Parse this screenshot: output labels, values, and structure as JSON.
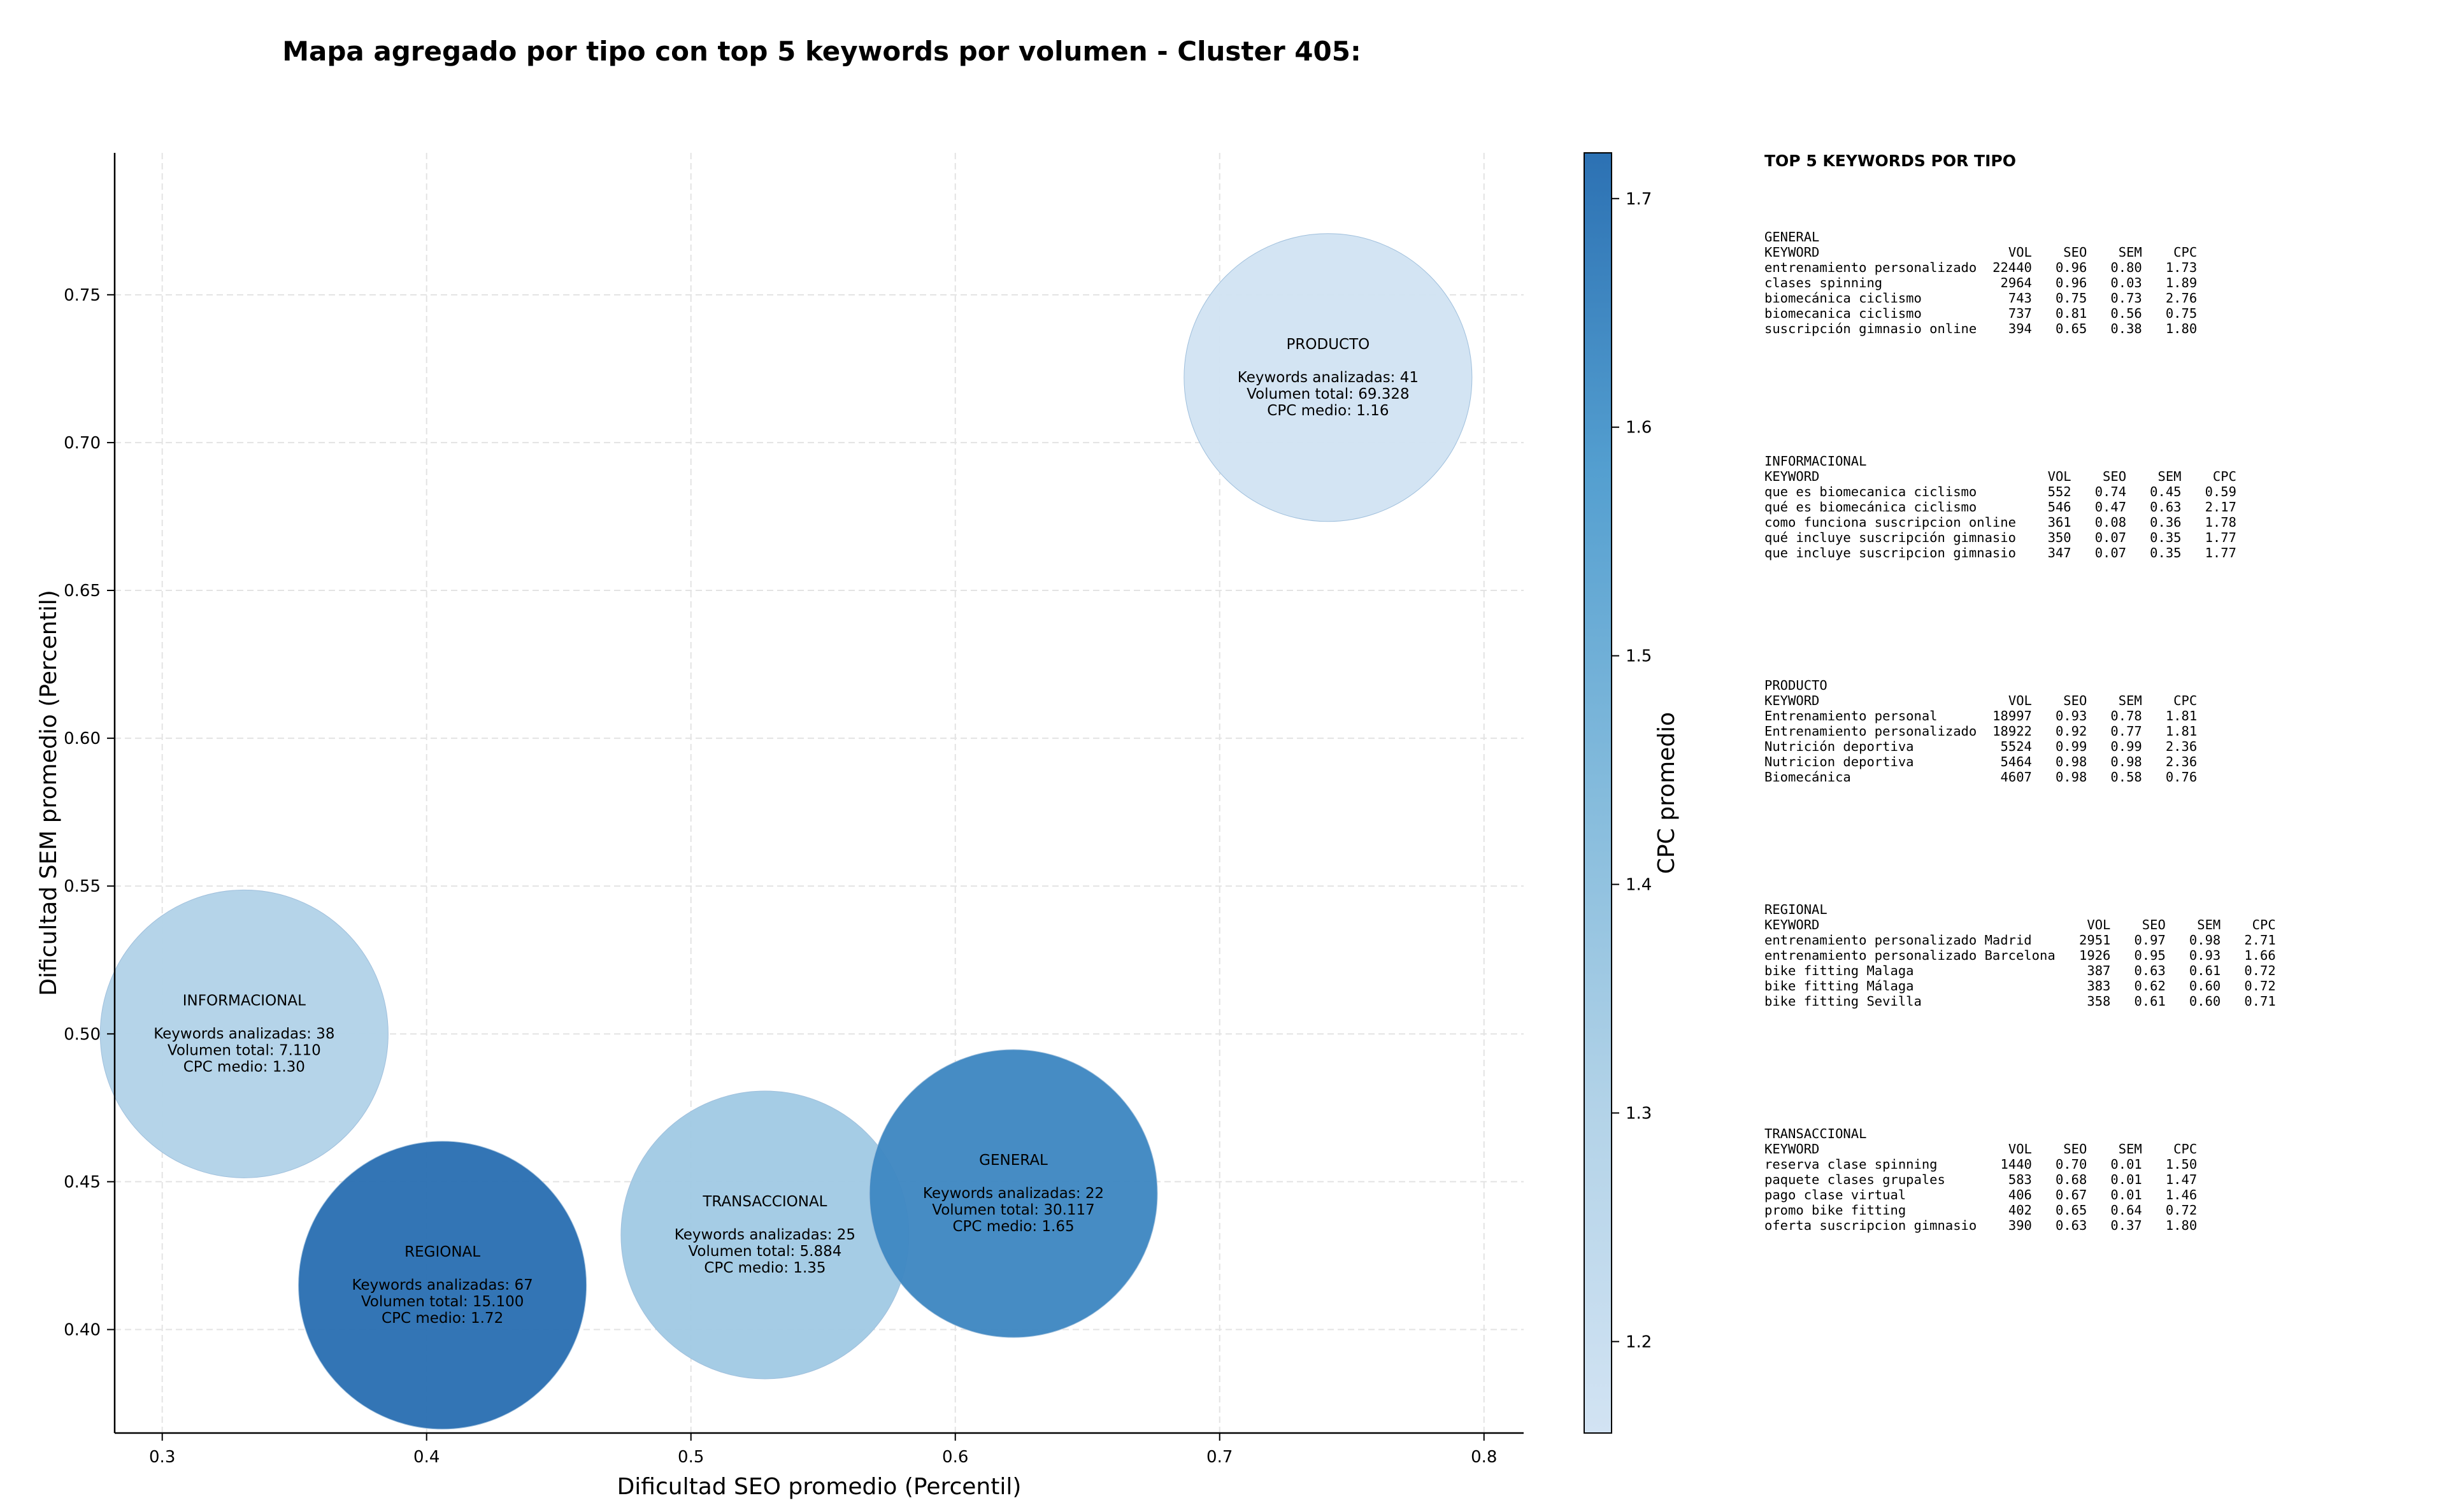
{
  "chart_data": {
    "type": "scatter",
    "title": "Mapa agregado por tipo con top 5 keywords por volumen - Cluster 405:",
    "xlabel": "Dificultad SEO promedio (Percentil)",
    "ylabel": "Dificultad SEM promedio (Percentil)",
    "xlim": [
      0.282,
      0.815
    ],
    "ylim": [
      0.365,
      0.798
    ],
    "xticks": [
      "0.3",
      "0.4",
      "0.5",
      "0.6",
      "0.7",
      "0.8"
    ],
    "yticks": [
      "0.40",
      "0.45",
      "0.50",
      "0.55",
      "0.60",
      "0.65",
      "0.70",
      "0.75"
    ],
    "grid": true,
    "colorbar": {
      "label": "CPC promedio",
      "range": [
        1.16,
        1.72
      ],
      "ticks": [
        "1.2",
        "1.3",
        "1.4",
        "1.5",
        "1.6",
        "1.7"
      ],
      "color_low": "#d2e3f3",
      "color_high": "#2c71b3"
    },
    "bubbles": [
      {
        "name": "PRODUCTO",
        "x": 0.741,
        "y": 0.722,
        "cpc": 1.16,
        "line1": "Keywords analizadas: 41",
        "line2": "Volumen total: 69.328",
        "line3": "CPC medio: 1.16"
      },
      {
        "name": "INFORMACIONAL",
        "x": 0.331,
        "y": 0.5,
        "cpc": 1.3,
        "line1": "Keywords analizadas: 38",
        "line2": "Volumen total: 7.110",
        "line3": "CPC medio: 1.30"
      },
      {
        "name": "REGIONAL",
        "x": 0.406,
        "y": 0.415,
        "cpc": 1.72,
        "line1": "Keywords analizadas: 67",
        "line2": "Volumen total: 15.100",
        "line3": "CPC medio: 1.72"
      },
      {
        "name": "TRANSACCIONAL",
        "x": 0.528,
        "y": 0.432,
        "cpc": 1.35,
        "line1": "Keywords analizadas: 25",
        "line2": "Volumen total: 5.884",
        "line3": "CPC medio: 1.35"
      },
      {
        "name": "GENERAL",
        "x": 0.622,
        "y": 0.446,
        "cpc": 1.65,
        "line1": "Keywords analizadas: 22",
        "line2": "Volumen total: 30.117",
        "line3": "CPC medio: 1.65"
      }
    ]
  },
  "side_panel": {
    "title": "TOP 5 KEYWORDS POR TIPO",
    "columns": [
      "KEYWORD",
      "VOL",
      "SEO",
      "SEM",
      "CPC"
    ],
    "groups": [
      {
        "name": "GENERAL",
        "rows": [
          [
            "entrenamiento personalizado",
            "22440",
            "0.96",
            "0.80",
            "1.73"
          ],
          [
            "clases spinning",
            "2964",
            "0.96",
            "0.03",
            "1.89"
          ],
          [
            "biomecánica ciclismo",
            "743",
            "0.75",
            "0.73",
            "2.76"
          ],
          [
            "biomecanica ciclismo",
            "737",
            "0.81",
            "0.56",
            "0.75"
          ],
          [
            "suscripción gimnasio online",
            "394",
            "0.65",
            "0.38",
            "1.80"
          ]
        ]
      },
      {
        "name": "INFORMACIONAL",
        "rows": [
          [
            "que es biomecanica ciclismo",
            "552",
            "0.74",
            "0.45",
            "0.59"
          ],
          [
            "qué es biomecánica ciclismo",
            "546",
            "0.47",
            "0.63",
            "2.17"
          ],
          [
            "como funciona suscripcion online",
            "361",
            "0.08",
            "0.36",
            "1.78"
          ],
          [
            "qué incluye suscripción gimnasio",
            "350",
            "0.07",
            "0.35",
            "1.77"
          ],
          [
            "que incluye suscripcion gimnasio",
            "347",
            "0.07",
            "0.35",
            "1.77"
          ]
        ]
      },
      {
        "name": "PRODUCTO",
        "rows": [
          [
            "Entrenamiento personal",
            "18997",
            "0.93",
            "0.78",
            "1.81"
          ],
          [
            "Entrenamiento personalizado",
            "18922",
            "0.92",
            "0.77",
            "1.81"
          ],
          [
            "Nutrición deportiva",
            "5524",
            "0.99",
            "0.99",
            "2.36"
          ],
          [
            "Nutricion deportiva",
            "5464",
            "0.98",
            "0.98",
            "2.36"
          ],
          [
            "Biomecánica",
            "4607",
            "0.98",
            "0.58",
            "0.76"
          ]
        ]
      },
      {
        "name": "REGIONAL",
        "rows": [
          [
            "entrenamiento personalizado Madrid",
            "2951",
            "0.97",
            "0.98",
            "2.71"
          ],
          [
            "entrenamiento personalizado Barcelona",
            "1926",
            "0.95",
            "0.93",
            "1.66"
          ],
          [
            "bike fitting Malaga",
            "387",
            "0.63",
            "0.61",
            "0.72"
          ],
          [
            "bike fitting Málaga",
            "383",
            "0.62",
            "0.60",
            "0.72"
          ],
          [
            "bike fitting Sevilla",
            "358",
            "0.61",
            "0.60",
            "0.71"
          ]
        ]
      },
      {
        "name": "TRANSACCIONAL",
        "rows": [
          [
            "reserva clase spinning",
            "1440",
            "0.70",
            "0.01",
            "1.50"
          ],
          [
            "paquete clases grupales",
            "583",
            "0.68",
            "0.01",
            "1.47"
          ],
          [
            "pago clase virtual",
            "406",
            "0.67",
            "0.01",
            "1.46"
          ],
          [
            "promo bike fitting",
            "402",
            "0.65",
            "0.64",
            "0.72"
          ],
          [
            "oferta suscripcion gimnasio",
            "390",
            "0.63",
            "0.37",
            "1.80"
          ]
        ]
      }
    ]
  }
}
